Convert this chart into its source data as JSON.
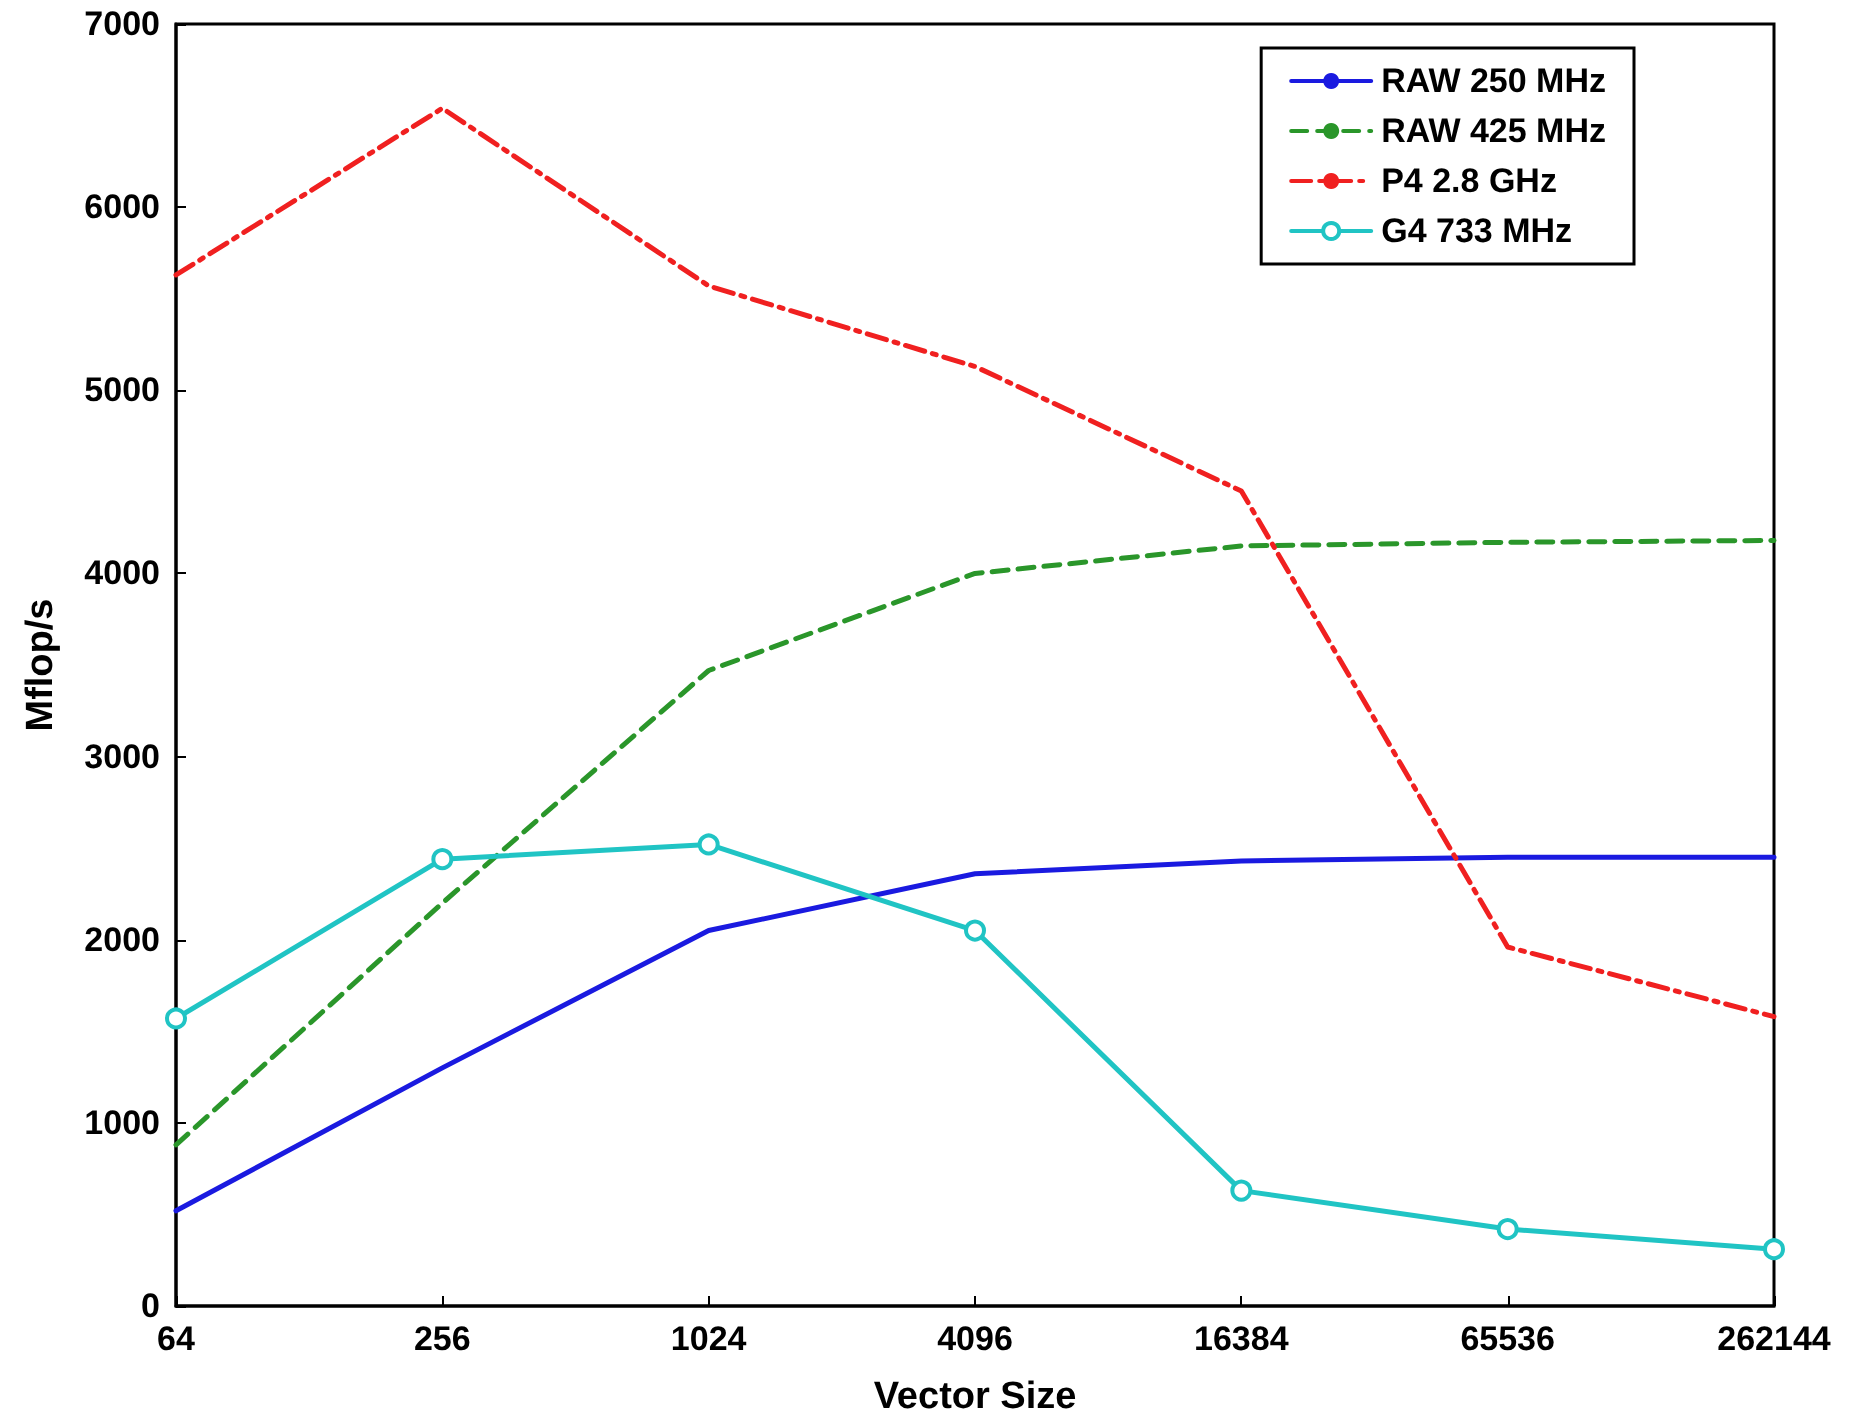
{
  "chart_data": {
    "type": "line",
    "xlabel": "Vector Size",
    "ylabel": "Mflop/s",
    "log": "x",
    "x": [
      64,
      256,
      1024,
      4096,
      16384,
      65536,
      262144
    ],
    "xlim": [
      64,
      262144
    ],
    "xticks": [
      64,
      256,
      1024,
      4096,
      16384,
      65536,
      262144
    ],
    "ylim": [
      0,
      7000
    ],
    "yticks": [
      0,
      1000,
      2000,
      3000,
      4000,
      5000,
      6000,
      7000
    ],
    "grid": false,
    "legend": "top right",
    "series": [
      {
        "name": "RAW 250 MHz",
        "color": "#1a1ae0",
        "line_style": "solid",
        "marker": "none",
        "values": [
          520,
          1300,
          2050,
          2360,
          2430,
          2450,
          2450
        ]
      },
      {
        "name": "RAW 425 MHz",
        "color": "#2a962a",
        "line_style": "dashed",
        "marker": "none",
        "values": [
          880,
          2200,
          3470,
          4000,
          4150,
          4170,
          4180
        ]
      },
      {
        "name": "P4 2.8 GHz",
        "color": "#f02020",
        "line_style": "dashdot",
        "marker": "none",
        "values": [
          5630,
          6540,
          5570,
          5130,
          4450,
          1960,
          1580
        ]
      },
      {
        "name": "G4 733 MHz",
        "color": "#20c4c4",
        "line_style": "solid",
        "marker": "circle",
        "values": [
          1570,
          2440,
          2520,
          2050,
          630,
          420,
          310
        ]
      }
    ]
  }
}
